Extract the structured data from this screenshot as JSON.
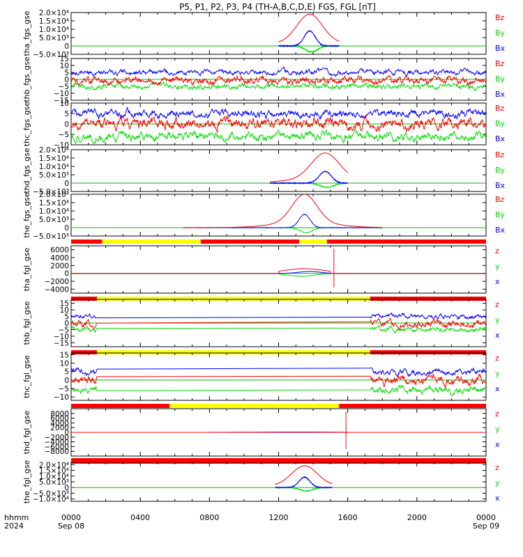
{
  "figure": {
    "title": "P5, P1, P2, P3, P4 (TH-A,B,C,D,E) FGS, FGL [nT]",
    "date_label_left": "hhmm",
    "year_label": "2024",
    "start_date_label": "Sep 08",
    "end_date_label": "Sep 09"
  },
  "colors": {
    "Bx": "#0000ff",
    "By": "#00dd00",
    "Bz": "#ff0000",
    "bar_red": "#ff0000",
    "bar_yellow": "#ffff00"
  },
  "chart_data": {
    "type": "line",
    "x_ticks": [
      "0000",
      "0400",
      "0800",
      "1200",
      "1600",
      "2000",
      "0000"
    ],
    "x_range_hours": [
      0,
      24
    ],
    "panels": [
      {
        "ylabel": "tha_fgs_gse",
        "ylim": [
          -5000,
          20000
        ],
        "ytick_labels": [
          "2.0×10⁴",
          "1.5×10⁴",
          "1.0×10⁴",
          "5.0×10³",
          "0",
          "−5.0×10³"
        ],
        "ytick_values": [
          20000,
          15000,
          10000,
          5000,
          0,
          -5000
        ],
        "legend": [
          "Bz",
          "By",
          "Bx"
        ],
        "signal": "peak",
        "peak": {
          "center_h": 13.8,
          "width_h": 0.45,
          "coverage": [
            12,
            15.5
          ],
          "Bz": 19000,
          "By": -3500,
          "Bx": 9000
        }
      },
      {
        "ylabel": "thb_fgs_gse",
        "ylim": [
          -15,
          15
        ],
        "ytick_labels": [
          "15",
          "10",
          "5",
          "0",
          "−5",
          "−10",
          "−15"
        ],
        "ytick_values": [
          15,
          10,
          5,
          0,
          -5,
          -10,
          -15
        ],
        "legend": [
          "Bz",
          "By",
          "Bx"
        ],
        "signal": "noise",
        "levels": {
          "Bx": 5,
          "Bz": -1,
          "By": -5
        },
        "coverage": [
          0,
          24
        ]
      },
      {
        "ylabel": "thc_fgs_gse",
        "ylim": [
          -10,
          10
        ],
        "ytick_labels": [
          "10",
          "5",
          "0",
          "−5",
          "−10"
        ],
        "ytick_values": [
          10,
          5,
          0,
          -5,
          -10
        ],
        "legend": [
          "Bz",
          "By",
          "Bx"
        ],
        "signal": "noise",
        "levels": {
          "Bx": 5,
          "Bz": 0,
          "By": -6
        },
        "coverage": [
          0,
          24
        ]
      },
      {
        "ylabel": "thd_fgs_gse",
        "ylim": [
          -5000,
          20000
        ],
        "ytick_labels": [
          "2.0×10⁴",
          "1.5×10⁴",
          "1.0×10⁴",
          "5.0×10³",
          "0",
          "−5.0×10³"
        ],
        "ytick_values": [
          20000,
          15000,
          10000,
          5000,
          0,
          -5000
        ],
        "legend": [
          "Bz",
          "By",
          "Bx"
        ],
        "signal": "peak",
        "peak": {
          "center_h": 14.7,
          "width_h": 0.5,
          "coverage": [
            11.5,
            16
          ],
          "Bz": 18000,
          "By": -2500,
          "Bx": 7000
        }
      },
      {
        "ylabel": "the_fgs_gse",
        "ylim": [
          -5000,
          20000
        ],
        "ytick_labels": [
          "2.0×10⁴",
          "1.5×10⁴",
          "1.0×10⁴",
          "5.0×10³",
          "0",
          "−5.0×10³"
        ],
        "ytick_values": [
          20000,
          15000,
          10000,
          5000,
          0,
          -5000
        ],
        "legend": [
          "Bz",
          "By",
          "Bx"
        ],
        "signal": "peak",
        "peak": {
          "center_h": 13.5,
          "width_h": 0.45,
          "coverage": [
            6.5,
            18
          ],
          "Bz": 20000,
          "By": -3000,
          "Bx": 8000
        },
        "bar_below": [
          [
            "red",
            0,
            1.8
          ],
          [
            "yellow",
            1.8,
            7.5
          ],
          [
            "red",
            7.5,
            13.2
          ],
          [
            "yellow",
            13.2,
            14.8
          ],
          [
            "red",
            14.8,
            24
          ]
        ]
      },
      {
        "ylabel": "tha_fgl_gse",
        "ylim": [
          -5000,
          7000
        ],
        "ytick_labels": [
          "6000",
          "4000",
          "2000",
          "0",
          "−2000",
          "−4000"
        ],
        "ytick_values": [
          6000,
          4000,
          2000,
          0,
          -2000,
          -4000
        ],
        "legend": [
          "z",
          "y",
          "x"
        ],
        "signal": "fgl_a",
        "bar_below": [
          [
            "red",
            0,
            1.5
          ],
          [
            "yellow",
            1.5,
            17.3
          ],
          [
            "red",
            17.3,
            24
          ]
        ]
      },
      {
        "ylabel": "thb_fgl_gse",
        "ylim": [
          -18,
          18
        ],
        "ytick_labels": [
          "15",
          "10",
          "5",
          "0",
          "−5",
          "−10",
          "−15"
        ],
        "ytick_values": [
          15,
          10,
          5,
          0,
          -5,
          -10,
          -15
        ],
        "legend": [
          "z",
          "y",
          "x"
        ],
        "signal": "gap",
        "gap": [
          1.5,
          17.3
        ],
        "levels": {
          "x": 5,
          "z": -1,
          "y": -5
        },
        "bar_below": [
          [
            "red",
            0,
            1.5
          ],
          [
            "yellow",
            1.5,
            17.3
          ],
          [
            "red",
            17.3,
            24
          ]
        ]
      },
      {
        "ylabel": "thc_fgl_gse",
        "ylim": [
          -12,
          16
        ],
        "ytick_labels": [
          "15",
          "10",
          "5",
          "0",
          "−5",
          "−10"
        ],
        "ytick_values": [
          15,
          10,
          5,
          0,
          -5,
          -10
        ],
        "legend": [
          "z",
          "y",
          "x"
        ],
        "signal": "gap",
        "gap": [
          1.5,
          17.3
        ],
        "levels": {
          "x": 5,
          "z": 0,
          "y": -6
        },
        "bar_below": [
          [
            "red",
            0,
            5.7
          ],
          [
            "yellow",
            5.7,
            15.5
          ],
          [
            "red",
            15.5,
            24
          ]
        ]
      },
      {
        "ylabel": "thd_fgl_gse",
        "ylim": [
          -10000,
          10000
        ],
        "ytick_labels": [
          "8000",
          "6000",
          "4000",
          "2000",
          "0",
          "−2000",
          "−4000",
          "−6000",
          "−8000"
        ],
        "ytick_values": [
          8000,
          6000,
          4000,
          2000,
          0,
          -2000,
          -4000,
          -6000,
          -8000
        ],
        "legend": [
          "z",
          "y",
          "x"
        ],
        "signal": "fgl_d",
        "bar_below": [
          [
            "red",
            0,
            24
          ]
        ]
      },
      {
        "ylabel": "the_fgl_gse",
        "ylim": [
          -12000,
          22000
        ],
        "ytick_labels": [
          "2.0×10⁴",
          "1.5×10⁴",
          "1.0×10⁴",
          "5.0×10³",
          "0",
          "−5.0×10³",
          "−1.0×10⁴"
        ],
        "ytick_values": [
          20000,
          15000,
          10000,
          5000,
          0,
          -5000,
          -10000
        ],
        "legend": [
          "z",
          "y",
          "x"
        ],
        "signal": "peak",
        "peak": {
          "center_h": 13.5,
          "width_h": 0.45,
          "coverage": [
            11.8,
            15.1
          ],
          "Bz": 19000,
          "By": -3000,
          "Bx": 9000
        }
      }
    ]
  }
}
